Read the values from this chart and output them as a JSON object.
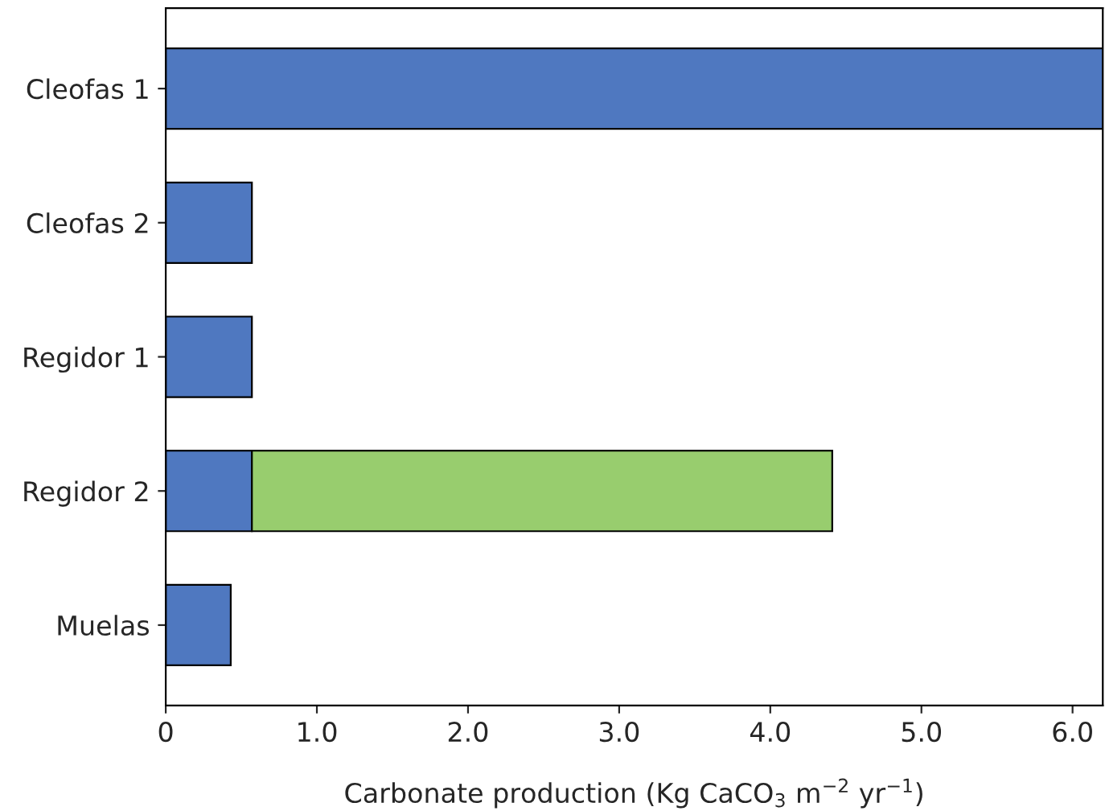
{
  "chart_data": {
    "type": "bar",
    "orientation": "horizontal",
    "stacked": true,
    "xlabel": "Carbonate production (Kg CaCO$_{3}$ m$^{−2}$ yr$^{−1}$)",
    "categories": [
      "Cleofas 1",
      "Cleofas 2",
      "Regidor 1",
      "Regidor 2",
      "Muelas"
    ],
    "series": [
      {
        "color": "#4f78c0",
        "values": [
          6.2,
          0.57,
          0.57,
          0.57,
          0.43
        ]
      },
      {
        "color": "#98cd6e",
        "values": [
          null,
          null,
          null,
          3.84,
          null
        ]
      }
    ],
    "xlim": [
      0,
      6.2
    ],
    "xticks": [
      {
        "value": 0,
        "label": "0"
      },
      {
        "value": 1,
        "label": "1.0"
      },
      {
        "value": 2,
        "label": "2.0"
      },
      {
        "value": 3,
        "label": "3.0"
      },
      {
        "value": 4,
        "label": "4.0"
      },
      {
        "value": 5,
        "label": "5.0"
      },
      {
        "value": 6,
        "label": "6.0"
      }
    ],
    "grid": false,
    "legend": false
  }
}
